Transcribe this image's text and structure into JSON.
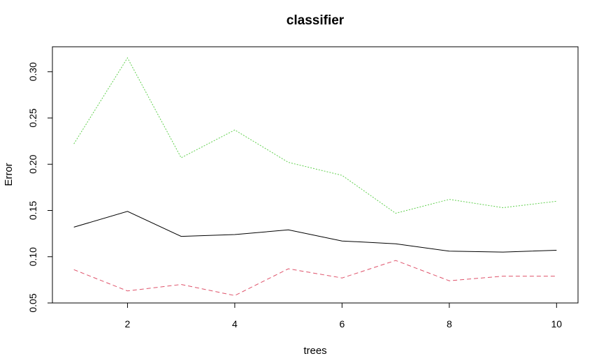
{
  "chart_data": {
    "type": "line",
    "title": "classifier",
    "xlabel": "trees",
    "ylabel": "Error",
    "xlim": [
      0.6,
      10.4
    ],
    "ylim": [
      0.05,
      0.327
    ],
    "x_ticks": [
      "2",
      "4",
      "6",
      "8",
      "10"
    ],
    "y_ticks": [
      "0.05",
      "0.10",
      "0.15",
      "0.20",
      "0.25",
      "0.30"
    ],
    "x": [
      1,
      2,
      3,
      4,
      5,
      6,
      7,
      8,
      9,
      10
    ],
    "grid": false,
    "legend": "none",
    "series": [
      {
        "color": "#000000",
        "dash": "solid",
        "values": [
          0.132,
          0.149,
          0.122,
          0.124,
          0.129,
          0.117,
          0.114,
          0.106,
          0.105,
          0.107
        ]
      },
      {
        "color": "#DF536B",
        "dash": "dashed",
        "values": [
          0.086,
          0.063,
          0.07,
          0.058,
          0.087,
          0.077,
          0.096,
          0.074,
          0.079,
          0.079
        ]
      },
      {
        "color": "#61D04F",
        "dash": "dotted",
        "values": [
          0.222,
          0.315,
          0.207,
          0.237,
          0.202,
          0.188,
          0.147,
          0.162,
          0.153,
          0.16
        ]
      }
    ]
  }
}
